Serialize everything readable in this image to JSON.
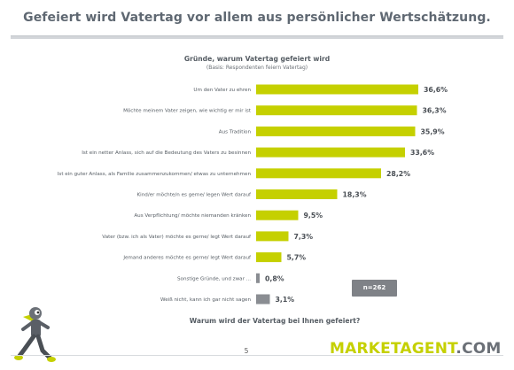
{
  "slide": {
    "title": "Gefeiert wird Vatertag vor allem aus persönlicher Wertschätzung.",
    "question": "Warum wird der Vatertag bei Ihnen gefeiert?",
    "page_number": "5",
    "sample_size": "n=262",
    "logo_main": "MARKETAGENT",
    "logo_suffix": ".COM"
  },
  "colors": {
    "bar_primary": "#c5d000",
    "bar_secondary": "#8a8d92",
    "title_text": "#5f6872",
    "badge_bg": "#7f8287"
  },
  "chart_data": {
    "type": "bar",
    "orientation": "horizontal",
    "title": "Gründe, warum Vatertag gefeiert wird",
    "subtitle": "(Basis: Respondenten feiern Vatertag)",
    "categories": [
      "Um den Vater zu ehren",
      "Möchte meinem Vater zeigen, wie wichtig er mir ist",
      "Aus Tradition",
      "Ist ein netter Anlass, sich auf die Bedeutung des Vaters zu besinnen",
      "Ist ein guter Anlass, als Familie zusammenzukommen/ etwas zu unternehmen",
      "Kind/er möchte/n es gerne/ legen Wert darauf",
      "Aus Verpflichtung/ möchte niemanden kränken",
      "Vater (bzw. ich als Vater) möchte es gerne/ legt Wert darauf",
      "Jemand anderes möchte es gerne/ legt Wert darauf",
      "Sonstige Gründe, und zwar ...",
      "Weiß nicht, kann ich gar nicht sagen"
    ],
    "values": [
      36.6,
      36.3,
      35.9,
      33.6,
      28.2,
      18.3,
      9.5,
      7.3,
      5.7,
      0.8,
      3.1
    ],
    "value_labels": [
      "36,6%",
      "36,3%",
      "35,9%",
      "33,6%",
      "28,2%",
      "18,3%",
      "9,5%",
      "7,3%",
      "5,7%",
      "0,8%",
      "3,1%"
    ],
    "bar_colors": [
      "#c5d000",
      "#c5d000",
      "#c5d000",
      "#c5d000",
      "#c5d000",
      "#c5d000",
      "#c5d000",
      "#c5d000",
      "#c5d000",
      "#8a8d92",
      "#8a8d92"
    ],
    "xlim": [
      0,
      40
    ],
    "grid": false,
    "legend": "none"
  }
}
